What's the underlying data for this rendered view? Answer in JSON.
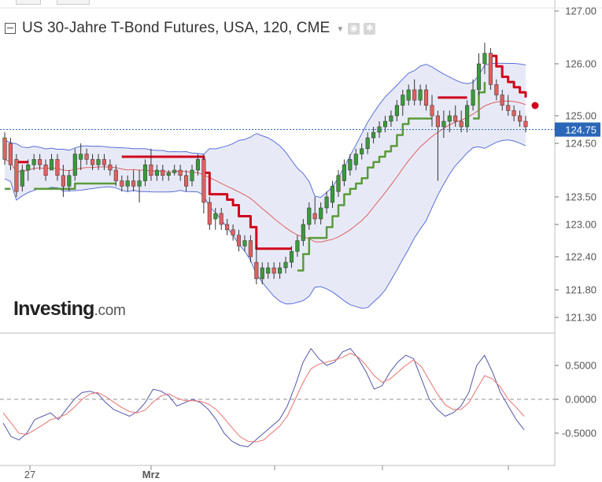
{
  "title": "US 30-Jahre T-Bond Futures, USA, 120, CME",
  "logo": {
    "main": "Investing",
    "suffix": ".com"
  },
  "icons": {
    "collapse": "minus-square-icon",
    "dropdown": "caret-down-icon",
    "settings": "gear-icon",
    "visibility": "eye-icon"
  },
  "colors": {
    "bull": "#3a9a3a",
    "bear": "#e06060",
    "band": "#5b6fd8",
    "band_fill": "#e3e6f5",
    "stop_up": "#d0021b",
    "stop_down": "#5a9a3a",
    "current_price_tag": "#2b67b8",
    "stoch_k": "#5256a8",
    "stoch_d": "#e8726f"
  },
  "chart_data": [
    {
      "type": "candlestick",
      "panel": "price",
      "ylim": [
        121.1,
        127.1
      ],
      "y_ticks": [
        "127.00",
        "126.00",
        "125.00",
        "124.50",
        "123.50",
        "123.00",
        "122.40",
        "121.80",
        "121.30"
      ],
      "current_price": "124.75",
      "x_labels": [
        "27",
        "Mrz"
      ],
      "ohlc": [
        [
          124.6,
          124.7,
          124.1,
          124.2
        ],
        [
          124.5,
          124.6,
          124.0,
          124.1
        ],
        [
          124.2,
          124.3,
          123.5,
          123.6
        ],
        [
          123.7,
          124.1,
          123.6,
          124.0
        ],
        [
          124.0,
          124.2,
          123.8,
          124.1
        ],
        [
          124.1,
          124.3,
          124.0,
          124.2
        ],
        [
          124.2,
          124.3,
          124.0,
          124.1
        ],
        [
          124.1,
          124.2,
          123.8,
          123.9
        ],
        [
          124.0,
          124.3,
          124.0,
          124.2
        ],
        [
          124.2,
          124.3,
          123.8,
          123.9
        ],
        [
          123.9,
          124.1,
          123.5,
          123.7
        ],
        [
          123.7,
          124.0,
          123.6,
          123.9
        ],
        [
          123.9,
          124.4,
          123.8,
          124.3
        ],
        [
          124.2,
          124.5,
          124.0,
          124.3
        ],
        [
          124.3,
          124.4,
          124.1,
          124.2
        ],
        [
          124.2,
          124.3,
          124.0,
          124.1
        ],
        [
          124.1,
          124.3,
          124.0,
          124.2
        ],
        [
          124.2,
          124.3,
          124.0,
          124.1
        ],
        [
          124.1,
          124.2,
          123.9,
          124.0
        ],
        [
          124.0,
          124.1,
          123.7,
          123.8
        ],
        [
          123.8,
          123.9,
          123.6,
          123.7
        ],
        [
          123.7,
          123.9,
          123.6,
          123.8
        ],
        [
          123.8,
          124.0,
          123.6,
          123.7
        ],
        [
          123.7,
          124.0,
          123.4,
          123.8
        ],
        [
          123.8,
          124.2,
          123.7,
          124.1
        ],
        [
          124.1,
          124.4,
          123.8,
          123.9
        ],
        [
          123.9,
          124.1,
          123.8,
          124.0
        ],
        [
          124.0,
          124.1,
          123.8,
          123.9
        ],
        [
          123.9,
          124.0,
          123.8,
          123.95
        ],
        [
          123.95,
          124.1,
          123.9,
          124.0
        ],
        [
          124.0,
          124.1,
          123.8,
          123.9
        ],
        [
          123.9,
          124.0,
          123.6,
          123.7
        ],
        [
          123.8,
          124.1,
          123.7,
          124.0
        ],
        [
          124.0,
          124.3,
          123.9,
          124.2
        ],
        [
          124.2,
          124.3,
          123.2,
          123.4
        ],
        [
          123.4,
          123.5,
          122.9,
          123.0
        ],
        [
          123.1,
          123.3,
          122.9,
          123.2
        ],
        [
          123.2,
          123.3,
          122.9,
          123.0
        ],
        [
          123.0,
          123.1,
          122.8,
          122.9
        ],
        [
          122.9,
          123.0,
          122.7,
          122.8
        ],
        [
          122.8,
          122.9,
          122.5,
          122.6
        ],
        [
          122.6,
          122.8,
          122.5,
          122.7
        ],
        [
          122.7,
          122.8,
          122.3,
          122.4
        ],
        [
          122.3,
          122.6,
          121.9,
          122.0
        ],
        [
          122.0,
          122.3,
          121.9,
          122.2
        ],
        [
          122.1,
          122.3,
          122.0,
          122.2
        ],
        [
          122.2,
          122.3,
          122.0,
          122.1
        ],
        [
          122.1,
          122.3,
          122.0,
          122.2
        ],
        [
          122.2,
          122.4,
          122.1,
          122.3
        ],
        [
          122.3,
          122.6,
          122.2,
          122.5
        ],
        [
          122.5,
          122.8,
          122.4,
          122.7
        ],
        [
          122.7,
          123.1,
          122.6,
          123.0
        ],
        [
          123.0,
          123.4,
          122.9,
          123.3
        ],
        [
          123.2,
          123.5,
          123.0,
          123.1
        ],
        [
          123.1,
          123.4,
          123.0,
          123.3
        ],
        [
          123.3,
          123.6,
          123.2,
          123.5
        ],
        [
          123.4,
          123.8,
          123.3,
          123.7
        ],
        [
          123.6,
          124.0,
          123.5,
          123.9
        ],
        [
          123.8,
          124.2,
          123.7,
          124.1
        ],
        [
          124.0,
          124.3,
          123.9,
          124.2
        ],
        [
          124.1,
          124.4,
          124.0,
          124.3
        ],
        [
          124.3,
          124.5,
          124.2,
          124.4
        ],
        [
          124.4,
          124.7,
          124.3,
          124.6
        ],
        [
          124.6,
          124.8,
          124.5,
          124.7
        ],
        [
          124.7,
          124.9,
          124.6,
          124.8
        ],
        [
          124.8,
          125.0,
          124.7,
          124.9
        ],
        [
          124.9,
          125.1,
          124.8,
          125.0
        ],
        [
          125.0,
          125.3,
          124.9,
          125.2
        ],
        [
          125.2,
          125.5,
          125.0,
          125.4
        ],
        [
          125.3,
          125.6,
          125.2,
          125.5
        ],
        [
          125.5,
          125.7,
          125.2,
          125.3
        ],
        [
          125.3,
          125.6,
          125.2,
          125.5
        ],
        [
          125.5,
          125.6,
          125.1,
          125.2
        ],
        [
          125.2,
          125.4,
          124.8,
          125.0
        ],
        [
          125.0,
          125.1,
          123.8,
          124.8
        ],
        [
          124.8,
          125.1,
          124.6,
          124.9
        ],
        [
          124.9,
          125.1,
          124.7,
          125.0
        ],
        [
          125.0,
          125.2,
          124.8,
          124.9
        ],
        [
          124.9,
          125.1,
          124.7,
          124.8
        ],
        [
          124.8,
          125.3,
          124.7,
          125.2
        ],
        [
          125.2,
          125.7,
          125.1,
          125.5
        ],
        [
          125.5,
          126.2,
          125.4,
          126.0
        ],
        [
          126.0,
          126.4,
          125.8,
          126.2
        ],
        [
          126.2,
          126.3,
          125.5,
          125.6
        ],
        [
          125.6,
          125.7,
          125.3,
          125.4
        ],
        [
          125.4,
          125.5,
          125.1,
          125.2
        ],
        [
          125.2,
          125.4,
          125.0,
          125.1
        ],
        [
          125.1,
          125.2,
          124.9,
          125.0
        ],
        [
          125.0,
          125.1,
          124.8,
          124.9
        ],
        [
          124.9,
          125.0,
          124.7,
          124.8
        ]
      ]
    },
    {
      "type": "line",
      "panel": "stochastic",
      "ylim": [
        -0.9,
        0.9
      ],
      "y_ticks": [
        "0.5000",
        "0.0000",
        "-0.5000"
      ],
      "series": [
        {
          "values": [
            -0.35,
            -0.55,
            -0.6,
            -0.5,
            -0.3,
            -0.25,
            -0.2,
            -0.3,
            -0.15,
            0.0,
            0.1,
            0.12,
            0.08,
            -0.05,
            -0.15,
            -0.2,
            -0.25,
            -0.18,
            -0.05,
            0.15,
            0.12,
            0.05,
            -0.1,
            -0.05,
            0.0,
            -0.05,
            -0.15,
            -0.3,
            -0.5,
            -0.62,
            -0.68,
            -0.7,
            -0.6,
            -0.5,
            -0.4,
            -0.3,
            -0.1,
            0.2,
            0.55,
            0.75,
            0.6,
            0.5,
            0.55,
            0.7,
            0.75,
            0.6,
            0.4,
            0.15,
            0.2,
            0.4,
            0.55,
            0.65,
            0.6,
            0.3,
            0.0,
            -0.15,
            -0.25,
            -0.2,
            -0.1,
            0.1,
            0.5,
            0.65,
            0.4,
            0.1,
            -0.1,
            -0.3,
            -0.45
          ]
        },
        {
          "values": [
            -0.2,
            -0.35,
            -0.5,
            -0.52,
            -0.45,
            -0.38,
            -0.3,
            -0.27,
            -0.22,
            -0.12,
            0.0,
            0.08,
            0.1,
            0.04,
            -0.04,
            -0.12,
            -0.18,
            -0.2,
            -0.16,
            -0.04,
            0.05,
            0.08,
            0.02,
            -0.02,
            -0.02,
            -0.03,
            -0.07,
            -0.15,
            -0.28,
            -0.42,
            -0.55,
            -0.62,
            -0.63,
            -0.6,
            -0.5,
            -0.4,
            -0.25,
            0.0,
            0.25,
            0.45,
            0.52,
            0.55,
            0.58,
            0.62,
            0.68,
            0.62,
            0.5,
            0.35,
            0.25,
            0.3,
            0.4,
            0.5,
            0.58,
            0.48,
            0.28,
            0.08,
            -0.08,
            -0.15,
            -0.15,
            -0.05,
            0.15,
            0.35,
            0.3,
            0.18,
            0.0,
            -0.12,
            -0.25
          ]
        }
      ]
    }
  ]
}
